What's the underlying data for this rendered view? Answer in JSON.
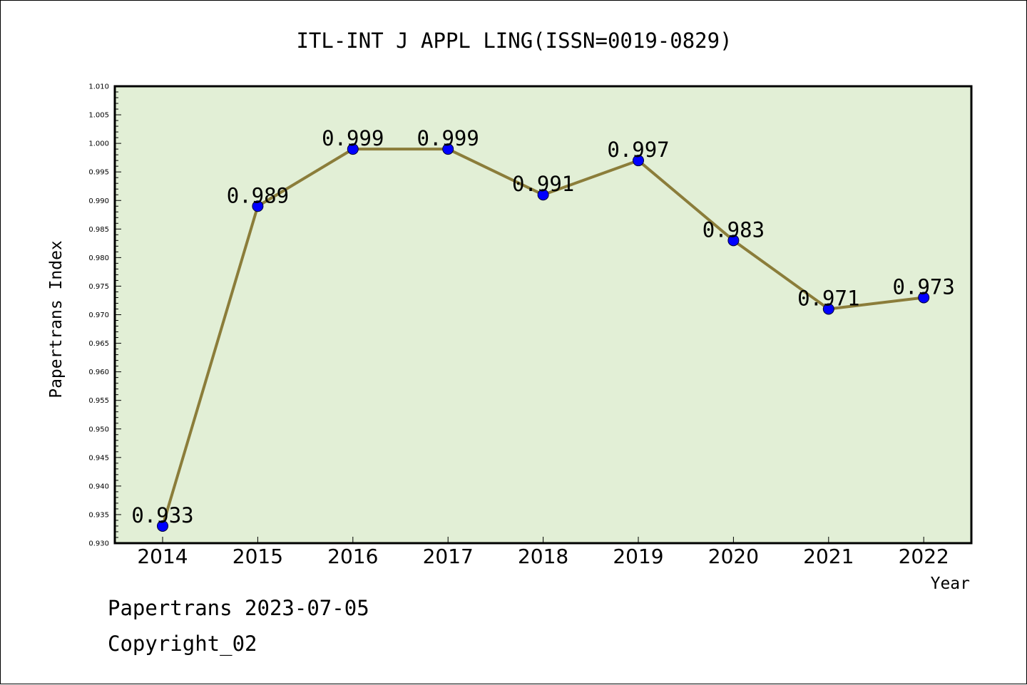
{
  "chart_data": {
    "type": "line",
    "title": "ITL-INT J APPL LING(ISSN=0019-0829)",
    "xlabel": "Year",
    "ylabel": "Papertrans Index",
    "categories": [
      "2014",
      "2015",
      "2016",
      "2017",
      "2018",
      "2019",
      "2020",
      "2021",
      "2022"
    ],
    "series": [
      {
        "values": [
          0.933,
          0.989,
          0.999,
          0.999,
          0.991,
          0.997,
          0.983,
          0.971,
          0.973
        ],
        "labels": [
          "0.933",
          "0.989",
          "0.999",
          "0.999",
          "0.991",
          "0.997",
          "0.983",
          "0.971",
          "0.973"
        ]
      }
    ],
    "ylim": [
      0.93,
      1.01
    ],
    "y_ticks": [
      "0.930",
      "0.935",
      "0.940",
      "0.945",
      "0.950",
      "0.955",
      "0.960",
      "0.965",
      "0.970",
      "0.975",
      "0.980",
      "0.985",
      "0.990",
      "0.995",
      "1.000",
      "1.005",
      "1.010"
    ],
    "grid": false,
    "legend": "none",
    "colors": {
      "plot_background": "#e2efd6",
      "line": "#8b7d3a",
      "marker": "#0000ff",
      "axis": "#000000"
    }
  },
  "footer": {
    "date_line": "Papertrans 2023-07-05",
    "copyright_line": "Copyright_02"
  }
}
